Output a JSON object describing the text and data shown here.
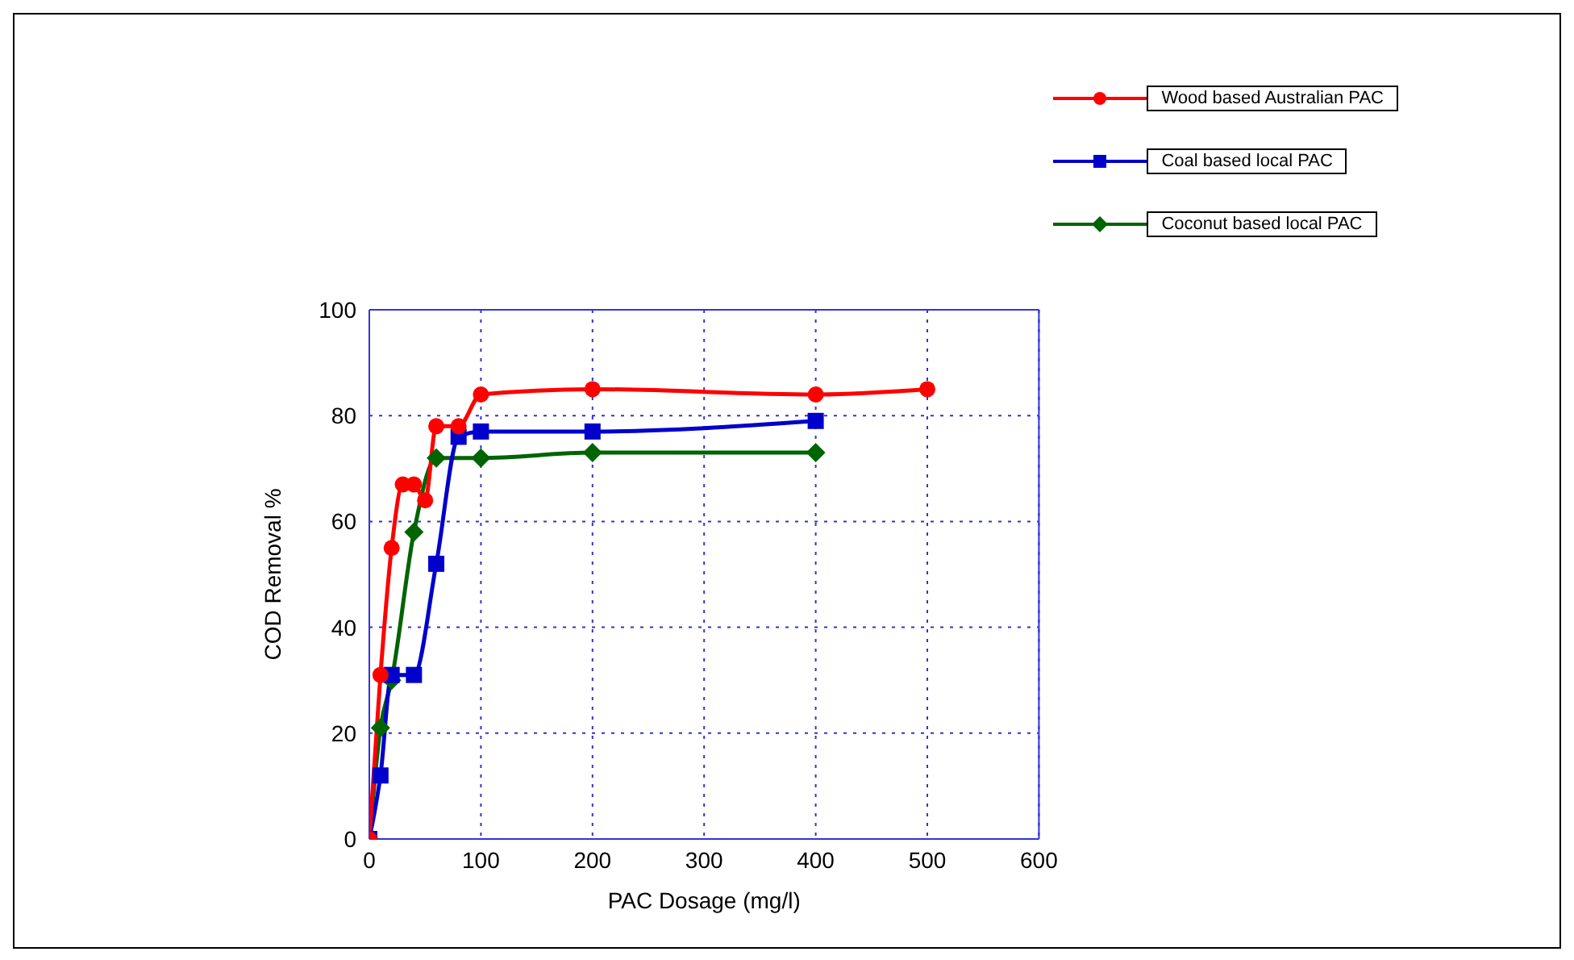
{
  "chart_data": {
    "type": "line",
    "xlabel": "PAC Dosage (mg/l)",
    "ylabel": "COD Removal %",
    "xlim": [
      0,
      600
    ],
    "xticks": [
      0,
      100,
      200,
      300,
      400,
      500,
      600
    ],
    "ylim": [
      0,
      100
    ],
    "yticks": [
      0,
      20,
      40,
      60,
      80,
      100
    ],
    "grid": true,
    "legend": "top right",
    "line_style": "solid",
    "series": [
      {
        "name": "Wood based Australian PAC",
        "color": "#ff0000",
        "marker": "circle",
        "x": [
          0,
          10,
          20,
          30,
          40,
          50,
          60,
          80,
          100,
          200,
          400,
          500
        ],
        "values": [
          0,
          31,
          55,
          67,
          67,
          64,
          78,
          78,
          84,
          85,
          84,
          85
        ]
      },
      {
        "name": "Coal based local PAC",
        "color": "#0000cc",
        "marker": "square",
        "x": [
          0,
          10,
          20,
          40,
          60,
          80,
          100,
          200,
          400
        ],
        "values": [
          0,
          12,
          31,
          31,
          52,
          76,
          77,
          77,
          79
        ]
      },
      {
        "name": "Coconut based local PAC",
        "color": "#006400",
        "marker": "diamond",
        "x": [
          0,
          10,
          20,
          40,
          60,
          100,
          200,
          400
        ],
        "values": [
          0,
          21,
          30,
          58,
          72,
          72,
          73,
          73
        ]
      }
    ]
  }
}
